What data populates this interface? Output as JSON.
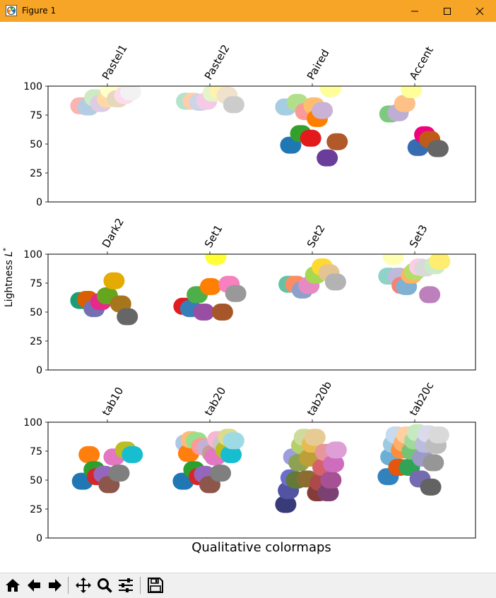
{
  "window": {
    "title": "Figure 1",
    "icons": {
      "app": "matplotlib-logo-icon",
      "minimize": "minimize-icon",
      "maximize": "maximize-icon",
      "close": "close-icon"
    }
  },
  "toolbar": {
    "buttons": [
      {
        "name": "home-button",
        "icon": "home-icon"
      },
      {
        "name": "back-button",
        "icon": "arrow-left-icon"
      },
      {
        "name": "forward-button",
        "icon": "arrow-right-icon"
      },
      {
        "name": "pan-button",
        "icon": "move-arrows-icon"
      },
      {
        "name": "zoom-button",
        "icon": "magnifier-icon"
      },
      {
        "name": "configure-subplots-button",
        "icon": "sliders-icon"
      },
      {
        "name": "save-button",
        "icon": "floppy-disk-icon"
      }
    ]
  },
  "chart_data": {
    "type": "scatter",
    "xlabel": "Qualitative colormaps",
    "ylabel": "Lightness L*",
    "ylim": [
      0,
      100
    ],
    "yticks": [
      "0",
      "25",
      "50",
      "75",
      "100"
    ],
    "grid": false,
    "panels": [
      {
        "colormaps": [
          {
            "name": "Pastel1",
            "points": [
              {
                "x": -0.8,
                "y": 83,
                "color": "#fbb4ae"
              },
              {
                "x": -0.58,
                "y": 82,
                "color": "#b3cde3"
              },
              {
                "x": -0.38,
                "y": 90,
                "color": "#ccebc5"
              },
              {
                "x": -0.2,
                "y": 85,
                "color": "#decbe4"
              },
              {
                "x": 0.0,
                "y": 89,
                "color": "#fed9a6"
              },
              {
                "x": 0.1,
                "y": 97,
                "color": "#ffffcc"
              },
              {
                "x": 0.3,
                "y": 89,
                "color": "#e5d8bd"
              },
              {
                "x": 0.52,
                "y": 92,
                "color": "#fddaec"
              },
              {
                "x": 0.7,
                "y": 95,
                "color": "#f2f2f2"
              }
            ]
          },
          {
            "name": "Pastel2",
            "points": [
              {
                "x": -0.7,
                "y": 87,
                "color": "#b3e2cd"
              },
              {
                "x": -0.5,
                "y": 87,
                "color": "#fdcdac"
              },
              {
                "x": -0.3,
                "y": 86,
                "color": "#cbd5e8"
              },
              {
                "x": -0.1,
                "y": 87,
                "color": "#f4cae4"
              },
              {
                "x": 0.1,
                "y": 94,
                "color": "#e6f5c9"
              },
              {
                "x": 0.32,
                "y": 96,
                "color": "#fff2ae"
              },
              {
                "x": 0.52,
                "y": 92,
                "color": "#f1e2cc"
              },
              {
                "x": 0.72,
                "y": 84,
                "color": "#cccccc"
              }
            ]
          },
          {
            "name": "Paired",
            "points": [
              {
                "x": -0.8,
                "y": 82,
                "color": "#a6cee3"
              },
              {
                "x": -0.65,
                "y": 49,
                "color": "#1f78b4"
              },
              {
                "x": -0.45,
                "y": 86,
                "color": "#b2df8a"
              },
              {
                "x": -0.35,
                "y": 59,
                "color": "#33a02c"
              },
              {
                "x": -0.2,
                "y": 78,
                "color": "#fb9a99"
              },
              {
                "x": -0.05,
                "y": 55,
                "color": "#e31a1c"
              },
              {
                "x": 0.05,
                "y": 83,
                "color": "#fdbf6f"
              },
              {
                "x": 0.15,
                "y": 72,
                "color": "#ff7f00"
              },
              {
                "x": 0.3,
                "y": 79,
                "color": "#cab2d6"
              },
              {
                "x": 0.45,
                "y": 38,
                "color": "#6a3d9a"
              },
              {
                "x": 0.55,
                "y": 98,
                "color": "#ffff99"
              },
              {
                "x": 0.75,
                "y": 52,
                "color": "#b15928"
              }
            ]
          },
          {
            "name": "Accent",
            "points": [
              {
                "x": -0.75,
                "y": 76,
                "color": "#7fc97f"
              },
              {
                "x": -0.5,
                "y": 77,
                "color": "#beaed4"
              },
              {
                "x": -0.3,
                "y": 85,
                "color": "#fdc086"
              },
              {
                "x": -0.1,
                "y": 97,
                "color": "#ffff99"
              },
              {
                "x": 0.1,
                "y": 47,
                "color": "#386cb0"
              },
              {
                "x": 0.3,
                "y": 58,
                "color": "#f0027f"
              },
              {
                "x": 0.45,
                "y": 54,
                "color": "#bf5b17"
              },
              {
                "x": 0.7,
                "y": 46,
                "color": "#666666"
              }
            ]
          }
        ]
      },
      {
        "colormaps": [
          {
            "name": "Dark2",
            "points": [
              {
                "x": -0.8,
                "y": 60,
                "color": "#1b9e77"
              },
              {
                "x": -0.6,
                "y": 61,
                "color": "#d95f02"
              },
              {
                "x": -0.4,
                "y": 53,
                "color": "#7570b3"
              },
              {
                "x": -0.2,
                "y": 59,
                "color": "#e7298a"
              },
              {
                "x": 0.0,
                "y": 64,
                "color": "#66a61e"
              },
              {
                "x": 0.2,
                "y": 77,
                "color": "#e6ab02"
              },
              {
                "x": 0.4,
                "y": 57,
                "color": "#a6761d"
              },
              {
                "x": 0.6,
                "y": 46,
                "color": "#666666"
              }
            ]
          },
          {
            "name": "Set1",
            "points": [
              {
                "x": -0.78,
                "y": 55,
                "color": "#e41a1c"
              },
              {
                "x": -0.58,
                "y": 53,
                "color": "#377eb8"
              },
              {
                "x": -0.38,
                "y": 65,
                "color": "#4daf4a"
              },
              {
                "x": -0.18,
                "y": 50,
                "color": "#984ea3"
              },
              {
                "x": 0.02,
                "y": 72,
                "color": "#ff7f00"
              },
              {
                "x": 0.18,
                "y": 98,
                "color": "#ffff33"
              },
              {
                "x": 0.38,
                "y": 50,
                "color": "#a65628"
              },
              {
                "x": 0.58,
                "y": 74,
                "color": "#f781bf"
              },
              {
                "x": 0.78,
                "y": 66,
                "color": "#999999"
              }
            ]
          },
          {
            "name": "Set2",
            "points": [
              {
                "x": -0.7,
                "y": 74,
                "color": "#66c2a5"
              },
              {
                "x": -0.5,
                "y": 74,
                "color": "#fc8d62"
              },
              {
                "x": -0.3,
                "y": 69,
                "color": "#8da0cb"
              },
              {
                "x": -0.1,
                "y": 73,
                "color": "#e78ac3"
              },
              {
                "x": 0.1,
                "y": 82,
                "color": "#a6d854"
              },
              {
                "x": 0.3,
                "y": 89,
                "color": "#ffd92f"
              },
              {
                "x": 0.5,
                "y": 84,
                "color": "#e5c494"
              },
              {
                "x": 0.7,
                "y": 76,
                "color": "#b3b3b3"
              }
            ]
          },
          {
            "name": "Set3",
            "points": [
              {
                "x": -0.78,
                "y": 81,
                "color": "#8dd3c7"
              },
              {
                "x": -0.65,
                "y": 98,
                "color": "#ffffb3"
              },
              {
                "x": -0.5,
                "y": 81,
                "color": "#bebada"
              },
              {
                "x": -0.38,
                "y": 73,
                "color": "#fb8072"
              },
              {
                "x": -0.25,
                "y": 72,
                "color": "#80b1d3"
              },
              {
                "x": -0.1,
                "y": 82,
                "color": "#fdb462"
              },
              {
                "x": 0.0,
                "y": 85,
                "color": "#b3de69"
              },
              {
                "x": 0.15,
                "y": 89,
                "color": "#fccde5"
              },
              {
                "x": 0.3,
                "y": 88,
                "color": "#d9d9d9"
              },
              {
                "x": 0.45,
                "y": 65,
                "color": "#bc80bd"
              },
              {
                "x": 0.6,
                "y": 90,
                "color": "#ccebc5"
              },
              {
                "x": 0.75,
                "y": 94,
                "color": "#ffed6f"
              }
            ]
          }
        ]
      },
      {
        "colormaps": [
          {
            "name": "tab10",
            "points": [
              {
                "x": -0.75,
                "y": 49,
                "color": "#1f77b4"
              },
              {
                "x": -0.55,
                "y": 72,
                "color": "#ff7f0e"
              },
              {
                "x": -0.4,
                "y": 59,
                "color": "#2ca02c"
              },
              {
                "x": -0.3,
                "y": 53,
                "color": "#d62728"
              },
              {
                "x": -0.1,
                "y": 55,
                "color": "#9467bd"
              },
              {
                "x": 0.05,
                "y": 46,
                "color": "#8c564b"
              },
              {
                "x": 0.2,
                "y": 70,
                "color": "#e377c2"
              },
              {
                "x": 0.35,
                "y": 56,
                "color": "#7f7f7f"
              },
              {
                "x": 0.55,
                "y": 76,
                "color": "#bcbd22"
              },
              {
                "x": 0.75,
                "y": 72,
                "color": "#17becf"
              }
            ]
          },
          {
            "name": "tab20",
            "points": [
              {
                "x": -0.8,
                "y": 49,
                "color": "#1f77b4"
              },
              {
                "x": -0.72,
                "y": 82,
                "color": "#aec7e8"
              },
              {
                "x": -0.64,
                "y": 73,
                "color": "#ff7f0e"
              },
              {
                "x": -0.56,
                "y": 85,
                "color": "#ffbb78"
              },
              {
                "x": -0.48,
                "y": 59,
                "color": "#2ca02c"
              },
              {
                "x": -0.4,
                "y": 84,
                "color": "#98df8a"
              },
              {
                "x": -0.32,
                "y": 53,
                "color": "#d62728"
              },
              {
                "x": -0.24,
                "y": 79,
                "color": "#ff9896"
              },
              {
                "x": -0.16,
                "y": 55,
                "color": "#9467bd"
              },
              {
                "x": -0.08,
                "y": 78,
                "color": "#c5b0d5"
              },
              {
                "x": 0.0,
                "y": 46,
                "color": "#8c564b"
              },
              {
                "x": 0.08,
                "y": 73,
                "color": "#c49c94"
              },
              {
                "x": 0.16,
                "y": 70,
                "color": "#e377c2"
              },
              {
                "x": 0.24,
                "y": 85,
                "color": "#f7b6d2"
              },
              {
                "x": 0.32,
                "y": 56,
                "color": "#7f7f7f"
              },
              {
                "x": 0.4,
                "y": 81,
                "color": "#c7c7c7"
              },
              {
                "x": 0.48,
                "y": 76,
                "color": "#bcbd22"
              },
              {
                "x": 0.56,
                "y": 87,
                "color": "#dbdb8d"
              },
              {
                "x": 0.64,
                "y": 72,
                "color": "#17becf"
              },
              {
                "x": 0.72,
                "y": 84,
                "color": "#9edae5"
              }
            ]
          },
          {
            "name": "tab20b",
            "points": [
              {
                "x": -0.8,
                "y": 29,
                "color": "#393b79"
              },
              {
                "x": -0.72,
                "y": 41,
                "color": "#5254a3"
              },
              {
                "x": -0.64,
                "y": 52,
                "color": "#6b6ecf"
              },
              {
                "x": -0.56,
                "y": 70,
                "color": "#9c9ede"
              },
              {
                "x": -0.48,
                "y": 50,
                "color": "#637939"
              },
              {
                "x": -0.4,
                "y": 65,
                "color": "#8ca252"
              },
              {
                "x": -0.32,
                "y": 80,
                "color": "#b5cf6b"
              },
              {
                "x": -0.24,
                "y": 87,
                "color": "#cedb9c"
              },
              {
                "x": -0.16,
                "y": 51,
                "color": "#8c6d31"
              },
              {
                "x": -0.08,
                "y": 69,
                "color": "#bd9e39"
              },
              {
                "x": 0.0,
                "y": 81,
                "color": "#e7ba52"
              },
              {
                "x": 0.08,
                "y": 87,
                "color": "#e7cb94"
              },
              {
                "x": 0.16,
                "y": 39,
                "color": "#843c39"
              },
              {
                "x": 0.24,
                "y": 48,
                "color": "#ad494a"
              },
              {
                "x": 0.32,
                "y": 61,
                "color": "#d6616b"
              },
              {
                "x": 0.4,
                "y": 74,
                "color": "#e7969c"
              },
              {
                "x": 0.48,
                "y": 39,
                "color": "#7b4173"
              },
              {
                "x": 0.56,
                "y": 50,
                "color": "#a55194"
              },
              {
                "x": 0.64,
                "y": 64,
                "color": "#ce6dbd"
              },
              {
                "x": 0.72,
                "y": 76,
                "color": "#de9ed6"
              }
            ]
          },
          {
            "name": "tab20c",
            "points": [
              {
                "x": -0.8,
                "y": 53,
                "color": "#3182bd"
              },
              {
                "x": -0.72,
                "y": 70,
                "color": "#6baed6"
              },
              {
                "x": -0.64,
                "y": 81,
                "color": "#9ecae1"
              },
              {
                "x": -0.56,
                "y": 89,
                "color": "#c6dbef"
              },
              {
                "x": -0.48,
                "y": 61,
                "color": "#e6550d"
              },
              {
                "x": -0.4,
                "y": 76,
                "color": "#fd8d3c"
              },
              {
                "x": -0.32,
                "y": 82,
                "color": "#fdae6b"
              },
              {
                "x": -0.24,
                "y": 89,
                "color": "#fdd0a2"
              },
              {
                "x": -0.16,
                "y": 61,
                "color": "#31a354"
              },
              {
                "x": -0.08,
                "y": 75,
                "color": "#74c476"
              },
              {
                "x": 0.0,
                "y": 84,
                "color": "#a1d99b"
              },
              {
                "x": 0.08,
                "y": 91,
                "color": "#c7e9c0"
              },
              {
                "x": 0.16,
                "y": 51,
                "color": "#756bb1"
              },
              {
                "x": 0.24,
                "y": 69,
                "color": "#9e9ac8"
              },
              {
                "x": 0.32,
                "y": 81,
                "color": "#bcbddc"
              },
              {
                "x": 0.4,
                "y": 90,
                "color": "#dadaeb"
              },
              {
                "x": 0.48,
                "y": 44,
                "color": "#636363"
              },
              {
                "x": 0.56,
                "y": 65,
                "color": "#969696"
              },
              {
                "x": 0.64,
                "y": 80,
                "color": "#bdbdbd"
              },
              {
                "x": 0.72,
                "y": 89,
                "color": "#d9d9d9"
              }
            ]
          }
        ]
      }
    ]
  }
}
